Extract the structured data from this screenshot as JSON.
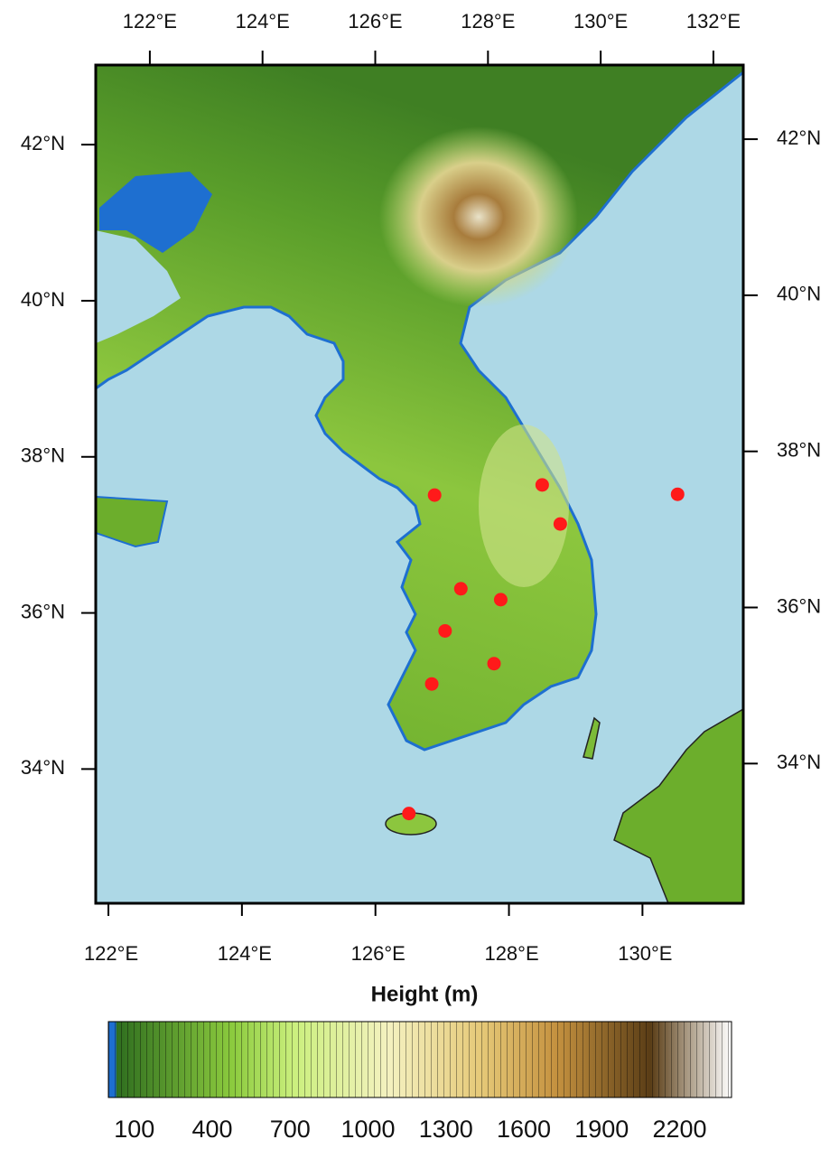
{
  "map": {
    "top_axis": {
      "lim": [
        121.04,
        132.53
      ],
      "ticks": [
        {
          "value": 122,
          "label": "122°E"
        },
        {
          "value": 124,
          "label": "124°E"
        },
        {
          "value": 126,
          "label": "126°E"
        },
        {
          "value": 128,
          "label": "128°E"
        },
        {
          "value": 130,
          "label": "130°E"
        },
        {
          "value": 132,
          "label": "132°E"
        }
      ]
    },
    "bottom_axis": {
      "lim": [
        121.81,
        131.51
      ],
      "ticks": [
        {
          "value": 122,
          "label": "122°E"
        },
        {
          "value": 124,
          "label": "124°E"
        },
        {
          "value": 126,
          "label": "126°E"
        },
        {
          "value": 128,
          "label": "128°E"
        },
        {
          "value": 130,
          "label": "130°E"
        }
      ]
    },
    "left_axis": {
      "lim": [
        32.28,
        43.02
      ],
      "ticks": [
        {
          "value": 42,
          "label": "42°N"
        },
        {
          "value": 40,
          "label": "40°N"
        },
        {
          "value": 38,
          "label": "38°N"
        },
        {
          "value": 36,
          "label": "36°N"
        },
        {
          "value": 34,
          "label": "34°N"
        }
      ]
    },
    "right_axis": {
      "lim": [
        32.21,
        42.95
      ],
      "ticks": [
        {
          "value": 42,
          "label": "42°N"
        },
        {
          "value": 40,
          "label": "40°N"
        },
        {
          "value": 38,
          "label": "38°N"
        },
        {
          "value": 36,
          "label": "36°N"
        },
        {
          "value": 34,
          "label": "34°N"
        }
      ]
    },
    "stations": {
      "color": "#ff1a1a",
      "lon": [
        126.96,
        128.71,
        128.98,
        130.9,
        127.36,
        127.99,
        127.1,
        127.86,
        126.88,
        126.51
      ],
      "lat": [
        37.51,
        37.64,
        37.14,
        37.52,
        36.31,
        36.17,
        35.77,
        35.35,
        35.09,
        33.43
      ]
    }
  },
  "colorbar": {
    "title": "Height (m)",
    "lim": [
      0,
      2400
    ],
    "ticks": [
      100,
      400,
      700,
      1000,
      1300,
      1600,
      1900,
      2200
    ]
  }
}
